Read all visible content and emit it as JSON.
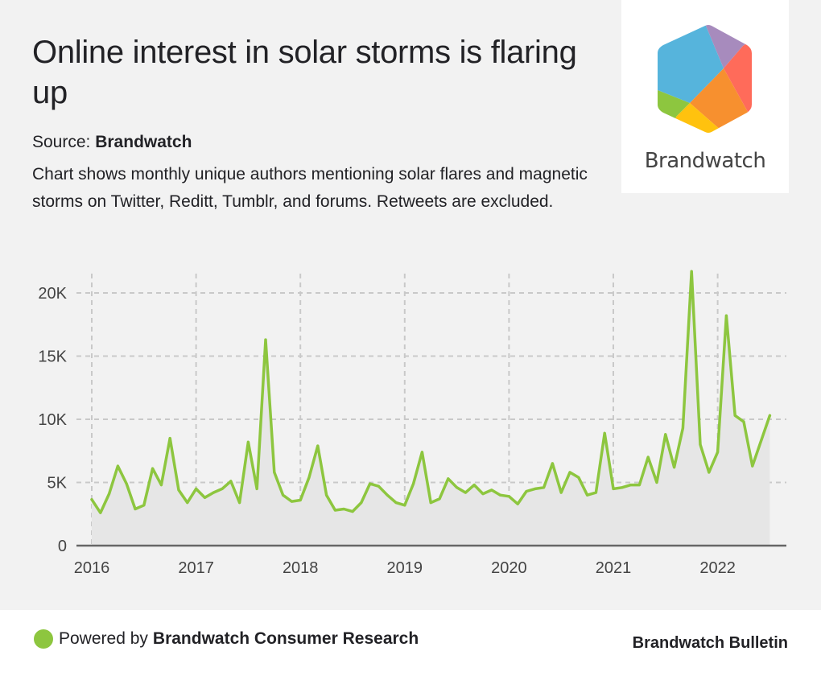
{
  "header": {
    "title": "Online interest in solar storms is flaring up",
    "source_label": "Source:",
    "source_name": "Brandwatch",
    "description": "Chart shows monthly unique authors mentioning solar flares and magnetic storms on Twitter, Reditt, Tumblr, and forums. Retweets are excluded."
  },
  "logo": {
    "text": "Brandwatch",
    "icon": "brandwatch-hexagon-logo",
    "colors": [
      "#56b4dc",
      "#a78bbd",
      "#ff6b5a",
      "#f7902f",
      "#ffc20e",
      "#8dc63f"
    ]
  },
  "footer": {
    "powered_prefix": "Powered by",
    "powered_name": "Brandwatch Consumer Research",
    "bulletin": "Brandwatch Bulletin",
    "dot_color": "#8dc63f"
  },
  "chart_data": {
    "type": "area",
    "title": "",
    "xlabel": "",
    "ylabel": "",
    "series": [
      {
        "name": "Monthly unique authors",
        "color": "#8dc63f",
        "fill": "#e6e6e6",
        "start": "2016-01",
        "values": [
          3650,
          2600,
          4100,
          6300,
          4900,
          2900,
          3200,
          6100,
          4800,
          8500,
          4400,
          3400,
          4500,
          3800,
          4200,
          4500,
          5100,
          3400,
          8200,
          4500,
          16300,
          5800,
          4000,
          3500,
          3600,
          5400,
          7900,
          4000,
          2800,
          2900,
          2700,
          3400,
          4900,
          4700,
          4000,
          3400,
          3200,
          4900,
          7400,
          3400,
          3700,
          5300,
          4600,
          4200,
          4800,
          4100,
          4400,
          4000,
          3900,
          3300,
          4300,
          4500,
          4600,
          6500,
          4200,
          5800,
          5400,
          4000,
          4200,
          8900,
          4500,
          4600,
          4800,
          4800,
          7000,
          5000,
          8800,
          6200,
          9300,
          21700,
          8000,
          5800,
          7400,
          18200,
          10300,
          9800,
          6300,
          8300,
          10300
        ]
      }
    ],
    "x_ticks": [
      "2016",
      "2017",
      "2018",
      "2019",
      "2020",
      "2021",
      "2022"
    ],
    "y_ticks": [
      0,
      5000,
      10000,
      15000,
      20000
    ],
    "y_tick_labels": [
      "0",
      "5K",
      "10K",
      "15K",
      "20K"
    ],
    "ylim": [
      0,
      21700
    ],
    "xlim": [
      "2016-01",
      "2022-09"
    ],
    "grid": true,
    "legend": "none"
  }
}
